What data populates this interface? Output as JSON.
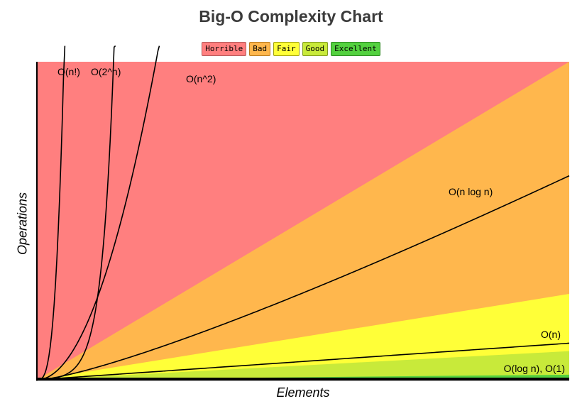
{
  "chart_data": {
    "type": "area",
    "title": "Big-O Complexity Chart",
    "xlabel": "Elements",
    "ylabel": "Operations",
    "xlim": [
      0,
      100
    ],
    "ylim": [
      0,
      100
    ],
    "grid": false,
    "legend_position": "top-center",
    "legend": [
      {
        "name": "Horrible",
        "color": "#ff7f7f"
      },
      {
        "name": "Bad",
        "color": "#ffb74d"
      },
      {
        "name": "Fair",
        "color": "#ffff38"
      },
      {
        "name": "Good",
        "color": "#c8ea3a"
      },
      {
        "name": "Excellent",
        "color": "#53d13f"
      }
    ],
    "regions": [
      {
        "name": "Horrible",
        "color": "#ff7f7f"
      },
      {
        "name": "Bad",
        "color": "#ffb74d",
        "upper_y_at_xmax": 100
      },
      {
        "name": "Fair",
        "color": "#ffff38",
        "upper_y_at_xmax": 27
      },
      {
        "name": "Good",
        "color": "#c8ea3a",
        "upper_y_at_xmax": 9
      },
      {
        "name": "Excellent",
        "color": "#53d13f",
        "upper_y_at_xmax": 1.6
      }
    ],
    "series": [
      {
        "name": "O(n!)",
        "label": "O(n!)"
      },
      {
        "name": "O(2^n)",
        "label": "O(2^n)"
      },
      {
        "name": "O(n^2)",
        "label": "O(n^2)"
      },
      {
        "name": "O(n log n)",
        "label": "O(n log n)"
      },
      {
        "name": "O(n)",
        "label": "O(n)"
      },
      {
        "name": "O(log n), O(1)",
        "label": "O(log n), O(1)"
      }
    ]
  }
}
